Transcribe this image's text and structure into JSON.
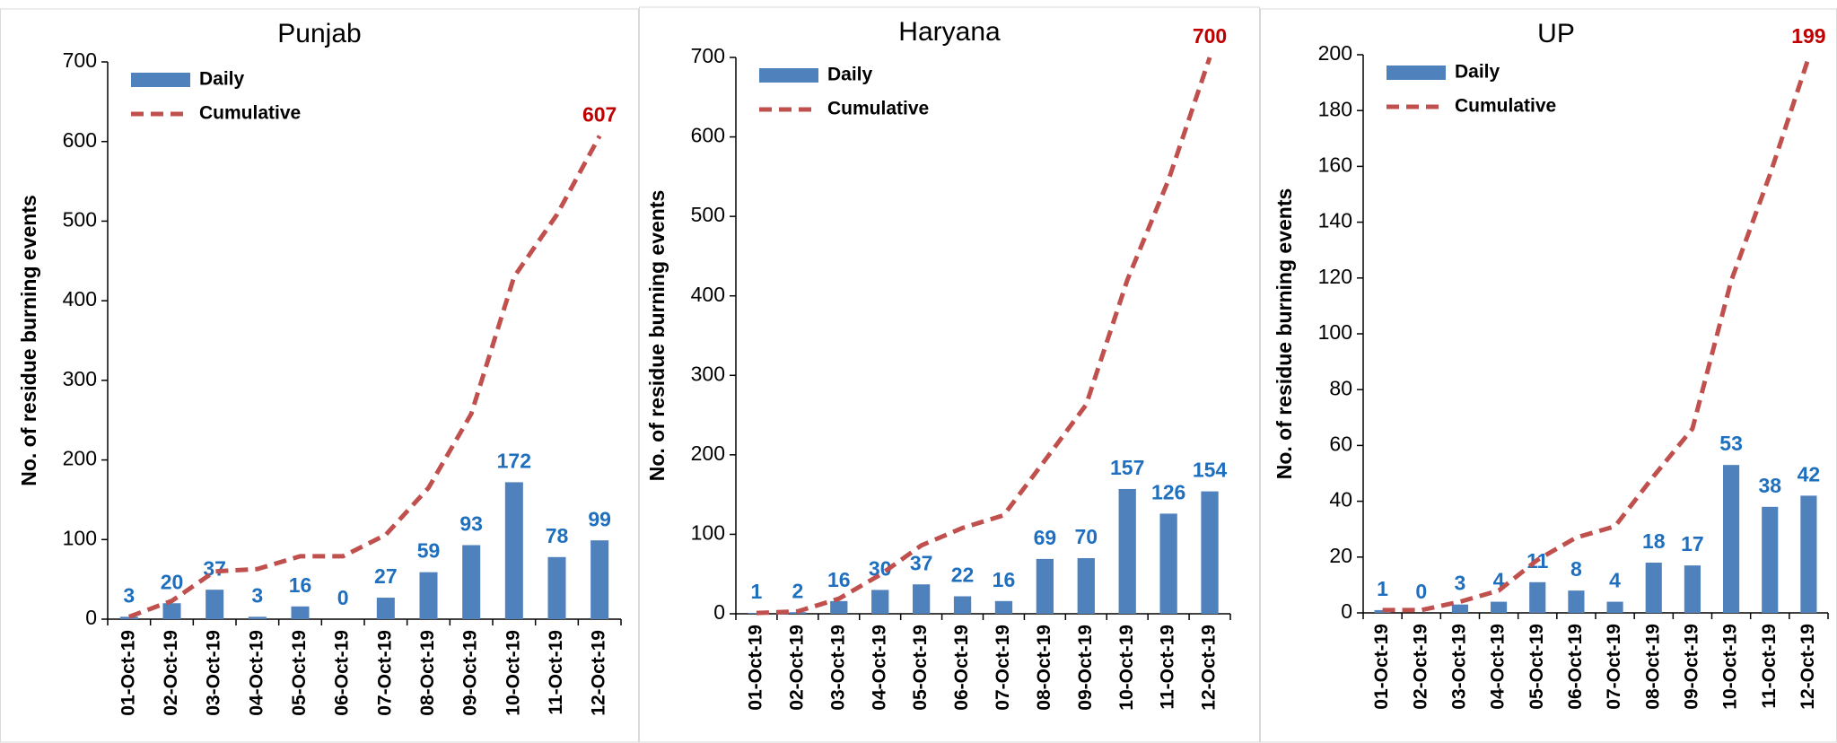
{
  "chart_data": [
    {
      "type": "bar",
      "title": "Punjab",
      "y_label": "No. of residue burning events",
      "categories": [
        "01-Oct-19",
        "02-Oct-19",
        "03-Oct-19",
        "04-Oct-19",
        "05-Oct-19",
        "06-Oct-19",
        "07-Oct-19",
        "08-Oct-19",
        "09-Oct-19",
        "10-Oct-19",
        "11-Oct-19",
        "12-Oct-19"
      ],
      "series": [
        {
          "name": "Daily",
          "color": "#4f81bd",
          "values": [
            3,
            20,
            37,
            3,
            16,
            0,
            27,
            59,
            93,
            172,
            78,
            99
          ]
        },
        {
          "name": "Cumulative",
          "color": "#c0504d",
          "type": "line",
          "values": [
            3,
            23,
            60,
            63,
            79,
            79,
            106,
            165,
            258,
            430,
            508,
            607
          ]
        }
      ],
      "ylim": [
        0,
        700
      ],
      "yticks": [
        0,
        100,
        200,
        300,
        400,
        500,
        600,
        700
      ],
      "legend": "upper left"
    },
    {
      "type": "bar",
      "title": "Haryana",
      "y_label": "No. of residue burning events",
      "categories": [
        "01-Oct-19",
        "02-Oct-19",
        "03-Oct-19",
        "04-Oct-19",
        "05-Oct-19",
        "06-Oct-19",
        "07-Oct-19",
        "08-Oct-19",
        "09-Oct-19",
        "10-Oct-19",
        "11-Oct-19",
        "12-Oct-19"
      ],
      "series": [
        {
          "name": "Daily",
          "color": "#4f81bd",
          "values": [
            1,
            2,
            16,
            30,
            37,
            22,
            16,
            69,
            70,
            157,
            126,
            154
          ]
        },
        {
          "name": "Cumulative",
          "color": "#c0504d",
          "type": "line",
          "values": [
            1,
            3,
            19,
            49,
            86,
            108,
            124,
            193,
            263,
            420,
            546,
            700
          ]
        }
      ],
      "ylim": [
        0,
        700
      ],
      "yticks": [
        0,
        100,
        200,
        300,
        400,
        500,
        600,
        700
      ],
      "legend": "upper left"
    },
    {
      "type": "bar",
      "title": "UP",
      "y_label": "No. of residue burning events",
      "categories": [
        "01-Oct-19",
        "02-Oct-19",
        "03-Oct-19",
        "04-Oct-19",
        "05-Oct-19",
        "06-Oct-19",
        "07-Oct-19",
        "08-Oct-19",
        "09-Oct-19",
        "10-Oct-19",
        "11-Oct-19",
        "12-Oct-19"
      ],
      "series": [
        {
          "name": "Daily",
          "color": "#4f81bd",
          "values": [
            1,
            0,
            3,
            4,
            11,
            8,
            4,
            18,
            17,
            53,
            38,
            42
          ]
        },
        {
          "name": "Cumulative",
          "color": "#c0504d",
          "type": "line",
          "values": [
            1,
            1,
            4,
            8,
            19,
            27,
            31,
            49,
            66,
            119,
            157,
            199
          ]
        }
      ],
      "ylim": [
        0,
        200
      ],
      "yticks": [
        0,
        20,
        40,
        60,
        80,
        100,
        120,
        140,
        160,
        180,
        200
      ],
      "legend": "upper left"
    }
  ]
}
